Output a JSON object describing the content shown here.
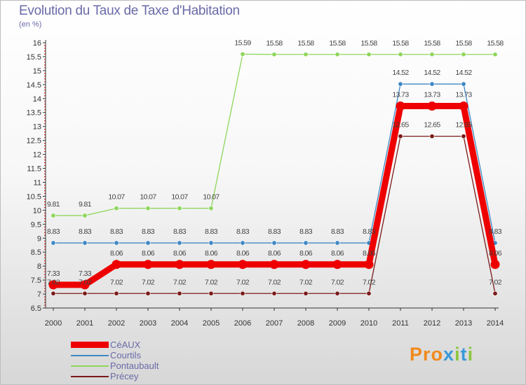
{
  "page": {
    "title": "Evolution du Taux de Taxe d'Habitation",
    "unit": "(en %)",
    "logo": "Proxiti"
  },
  "chart_data": {
    "type": "line",
    "title": "Evolution du Taux de Taxe d'Habitation",
    "ylabel": "(en %)",
    "xlabel": "",
    "ylim": [
      6.5,
      16
    ],
    "ytick_step": 0.5,
    "grid": false,
    "legend_position": "bottom-left",
    "x": [
      2000,
      2001,
      2002,
      2003,
      2004,
      2005,
      2006,
      2007,
      2008,
      2009,
      2010,
      2011,
      2012,
      2013,
      2014
    ],
    "series": [
      {
        "name": "CéAUX",
        "color": "#ee0000",
        "emphasis": true,
        "values": [
          7.33,
          7.33,
          8.06,
          8.06,
          8.06,
          8.06,
          8.06,
          8.06,
          8.06,
          8.06,
          8.06,
          13.73,
          13.73,
          13.73,
          8.06
        ]
      },
      {
        "name": "Courtils",
        "color": "#3f88c5",
        "emphasis": false,
        "values": [
          8.83,
          8.83,
          8.83,
          8.83,
          8.83,
          8.83,
          8.83,
          8.83,
          8.83,
          8.83,
          8.83,
          14.52,
          14.52,
          14.52,
          8.83
        ]
      },
      {
        "name": "Pontaubault",
        "color": "#8ed65c",
        "emphasis": false,
        "values": [
          9.81,
          9.81,
          10.07,
          10.07,
          10.07,
          10.07,
          15.59,
          15.58,
          15.58,
          15.58,
          15.58,
          15.58,
          15.58,
          15.58,
          15.58
        ]
      },
      {
        "name": "Précey",
        "color": "#7b1a1a",
        "emphasis": false,
        "values": [
          7.02,
          7.02,
          7.02,
          7.02,
          7.02,
          7.02,
          7.02,
          7.02,
          7.02,
          7.02,
          7.02,
          12.65,
          12.65,
          12.65,
          7.02
        ]
      }
    ]
  }
}
